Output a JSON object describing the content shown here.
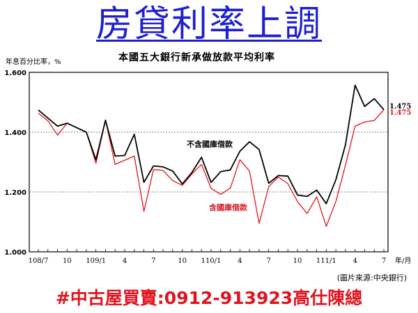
{
  "banner": {
    "title": "房貸利率上調"
  },
  "footer": {
    "ad_text": "#中古屋買賣:0912-913923高仕陳總"
  },
  "chart_data": {
    "type": "line",
    "title": "本國五大銀行新承做放款平均利率",
    "ylabel": "年息百分比率，%",
    "xlabel": "年/月",
    "source": "(圖片來源:中央銀行)",
    "ylim": [
      1.0,
      1.6
    ],
    "yticks": [
      1.0,
      1.2,
      1.4,
      1.6
    ],
    "ytick_labels": [
      "1.000",
      "1.200",
      "1.400",
      "1.600"
    ],
    "grid": "horizontal dashed",
    "xtick_labels": [
      {
        "label": "108/7",
        "index": 0
      },
      {
        "label": "10",
        "index": 3
      },
      {
        "label": "109/1",
        "index": 6
      },
      {
        "label": "4",
        "index": 9
      },
      {
        "label": "7",
        "index": 12
      },
      {
        "label": "10",
        "index": 15
      },
      {
        "label": "110/1",
        "index": 18
      },
      {
        "label": "4",
        "index": 21
      },
      {
        "label": "7",
        "index": 24
      },
      {
        "label": "10",
        "index": 27
      },
      {
        "label": "111/1",
        "index": 30
      },
      {
        "label": "4",
        "index": 33
      },
      {
        "label": "7",
        "index": 36
      }
    ],
    "series": [
      {
        "name": "不含國庫借款",
        "color": "#000000",
        "values": [
          1.474,
          1.447,
          1.42,
          1.43,
          1.415,
          1.4,
          1.308,
          1.44,
          1.32,
          1.322,
          1.393,
          1.232,
          1.287,
          1.284,
          1.27,
          1.227,
          1.265,
          1.316,
          1.232,
          1.268,
          1.274,
          1.336,
          1.368,
          1.342,
          1.229,
          1.255,
          1.253,
          1.19,
          1.185,
          1.206,
          1.161,
          1.241,
          1.358,
          1.557,
          1.486,
          1.512,
          1.475
        ],
        "end_label": "1.475"
      },
      {
        "name": "含國庫借款",
        "color": "#e0141e",
        "values": [
          1.463,
          1.438,
          1.39,
          1.43,
          1.415,
          1.4,
          1.296,
          1.44,
          1.292,
          1.306,
          1.32,
          1.135,
          1.275,
          1.272,
          1.238,
          1.222,
          1.26,
          1.292,
          1.212,
          1.192,
          1.213,
          1.308,
          1.27,
          1.095,
          1.218,
          1.25,
          1.228,
          1.168,
          1.128,
          1.184,
          1.085,
          1.168,
          1.29,
          1.42,
          1.434,
          1.439,
          1.475
        ],
        "end_label": "1.475"
      }
    ]
  }
}
